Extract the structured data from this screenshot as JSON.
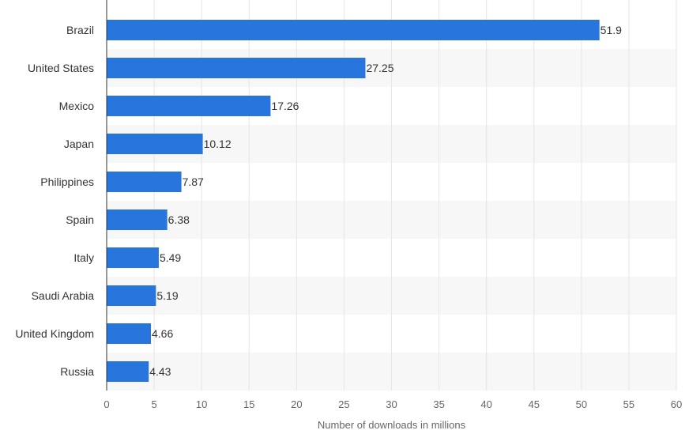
{
  "chart_data": {
    "type": "bar",
    "orientation": "horizontal",
    "categories": [
      "Brazil",
      "United States",
      "Mexico",
      "Japan",
      "Philippines",
      "Spain",
      "Italy",
      "Saudi Arabia",
      "United Kingdom",
      "Russia"
    ],
    "values": [
      51.9,
      27.25,
      17.26,
      10.12,
      7.87,
      6.38,
      5.49,
      5.19,
      4.66,
      4.43
    ],
    "value_labels": [
      "51.9",
      "27.25",
      "17.26",
      "10.12",
      "7.87",
      "6.38",
      "5.49",
      "5.19",
      "4.66",
      "4.43"
    ],
    "xlabel": "Number of downloads in millions",
    "ylabel": "",
    "xlim": [
      0,
      60
    ],
    "xticks": [
      "0",
      "5",
      "10",
      "15",
      "20",
      "25",
      "30",
      "35",
      "40",
      "45",
      "50",
      "55",
      "60"
    ],
    "grid": "vertical",
    "legend": "none",
    "bar_color": "#2876dd",
    "band_color": "#f7f7f7"
  }
}
